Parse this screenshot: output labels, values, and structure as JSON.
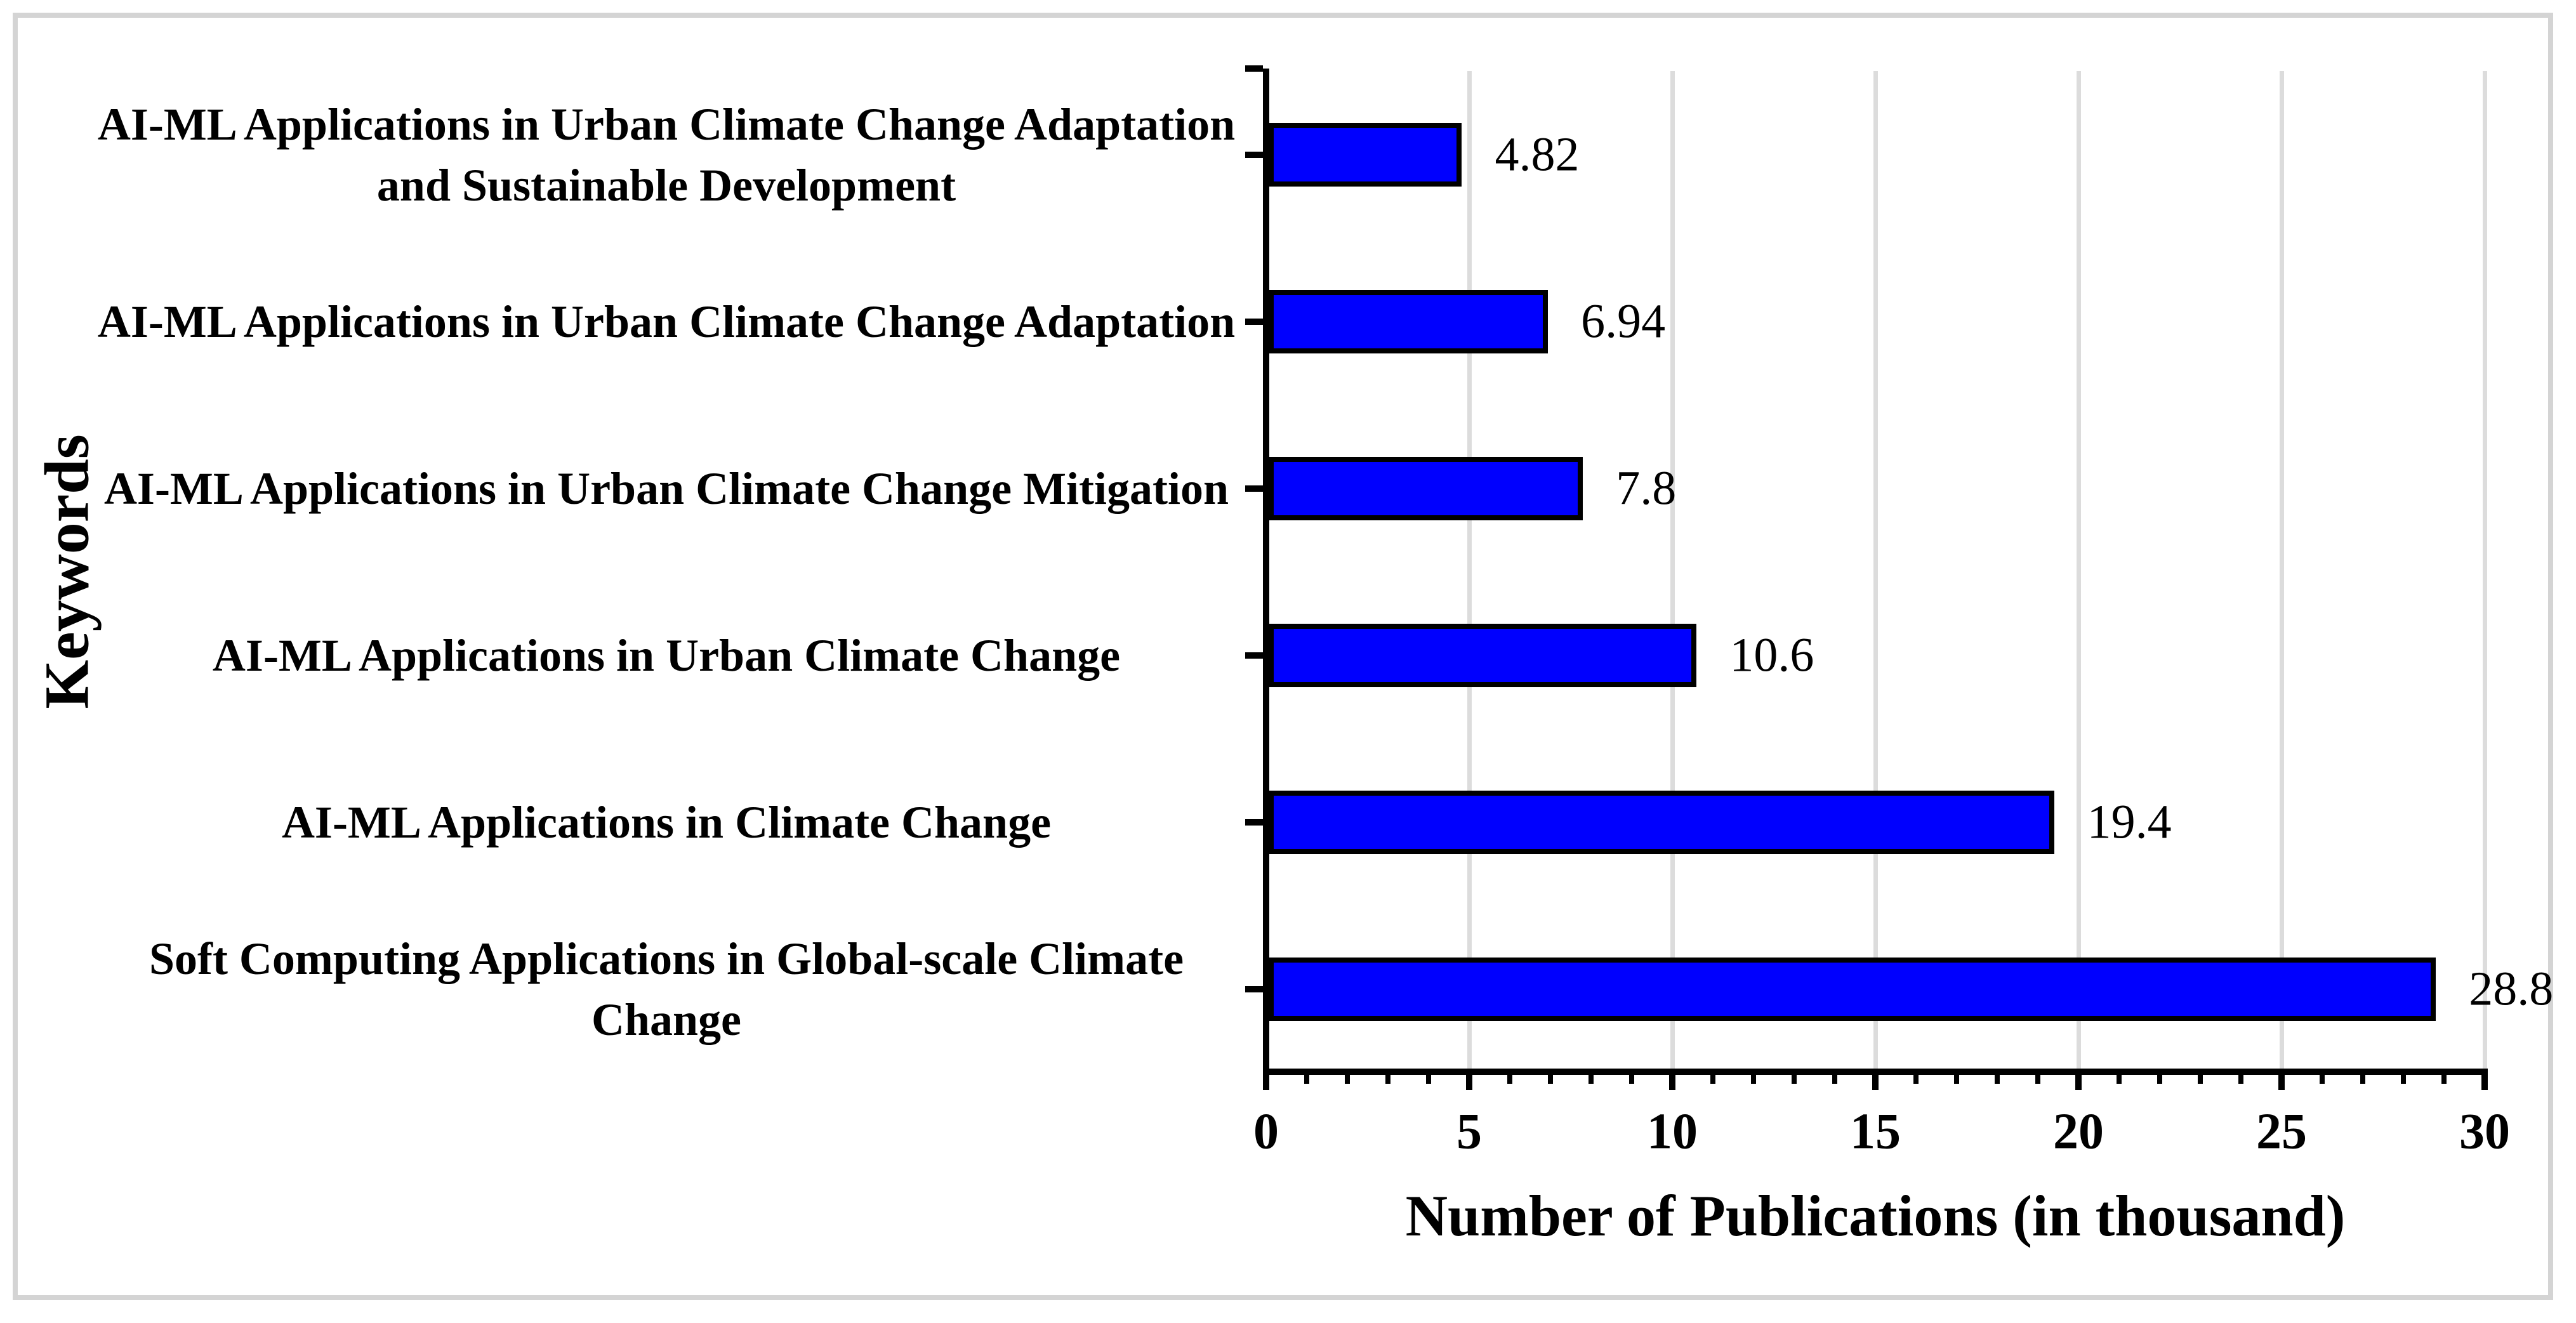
{
  "chart_data": {
    "type": "bar",
    "orientation": "horizontal",
    "title": "",
    "xlabel": "Number of Publications (in thousand)",
    "ylabel": "Keywords",
    "categories": [
      "AI-ML Applications in Urban Climate Change Adaptation and Sustainable Development",
      "AI-ML Applications in Urban Climate Change Adaptation",
      "AI-ML Applications in Urban Climate Change Mitigation",
      "AI-ML Applications in Urban Climate Change",
      "AI-ML Applications in Climate Change",
      "Soft Computing Applications in Global-scale Climate Change"
    ],
    "values": [
      4.82,
      6.94,
      7.8,
      10.6,
      19.4,
      28.8
    ],
    "value_labels": [
      "4.82",
      "6.94",
      "7.8",
      "10.6",
      "19.4",
      "28.8"
    ],
    "xlim": [
      0,
      30
    ],
    "x_major_ticks": [
      0,
      5,
      10,
      15,
      20,
      25,
      30
    ],
    "x_tick_labels": [
      "0",
      "5",
      "10",
      "15",
      "20",
      "25",
      "30"
    ],
    "x_minor_tick_step": 1,
    "grid": "vertical gridlines at major ticks only",
    "legend": "none",
    "bar_color": "#0000fe",
    "bar_border_color": "#000000",
    "gridline_color": "#dcdcdc",
    "frame_border_color": "#d4d4d4"
  }
}
